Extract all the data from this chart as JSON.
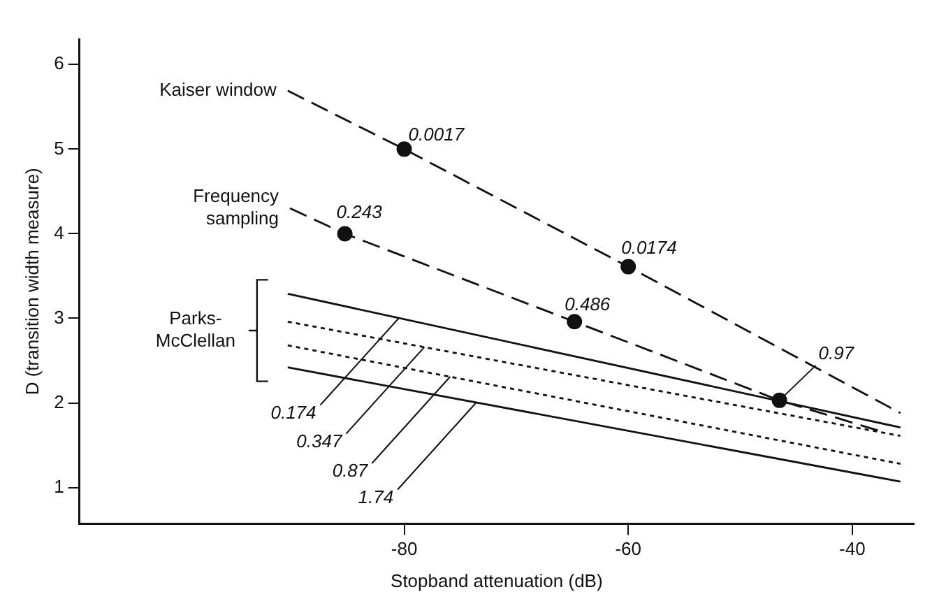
{
  "chart_data": {
    "type": "line",
    "xlabel": "Stopband attenuation (dB)",
    "ylabel": "D (transition width measure)",
    "xlim": [
      -109,
      -34.5
    ],
    "ylim": [
      0.57,
      6.3
    ],
    "xticks": [
      -80,
      -60,
      -40
    ],
    "yticks": [
      1,
      2,
      3,
      4,
      5,
      6
    ],
    "grid": false,
    "legend": false,
    "series": [
      {
        "name": "Kaiser window",
        "line_style": "dashed",
        "color": "#111111",
        "x": [
          -90.4,
          -80,
          -60,
          -35.7
        ],
        "values": [
          5.69,
          5,
          3.61,
          1.88
        ]
      },
      {
        "name": "Frequency\nsampling",
        "line_style": "dashed",
        "color": "#111111",
        "x": [
          -90.2,
          -85.3,
          -64.8,
          -46.5,
          -37.6
        ],
        "values": [
          4.3,
          4,
          2.96,
          2.03,
          1.67
        ]
      },
      {
        "line_style": "solid",
        "color": "#111111",
        "x": [
          -90.4,
          -35.7
        ],
        "values": [
          3.29,
          1.71
        ]
      },
      {
        "line_style": "dotted",
        "color": "#111111",
        "x": [
          -90.4,
          -35.7
        ],
        "values": [
          2.96,
          1.61
        ]
      },
      {
        "line_style": "dotted",
        "color": "#111111",
        "x": [
          -90.4,
          -35.7
        ],
        "values": [
          2.68,
          1.28
        ]
      },
      {
        "line_style": "solid",
        "color": "#111111",
        "x": [
          -90.4,
          -35.7
        ],
        "values": [
          2.42,
          1.07
        ]
      },
      {
        "type": "scatter",
        "marker": "circle",
        "color": "#111111",
        "x": [
          -80,
          -60,
          -85.3,
          -64.8,
          -46.5
        ],
        "values": [
          5,
          3.61,
          4,
          2.96,
          2.03
        ]
      }
    ],
    "annotations": [
      {
        "text": "0.0017",
        "x": -80,
        "y": 5
      },
      {
        "text": "0.0174",
        "x": -60,
        "y": 3.61
      },
      {
        "text": "0.243",
        "x": -85.3,
        "y": 4
      },
      {
        "text": "0.486",
        "x": -64.8,
        "y": 2.96
      },
      {
        "text": "0.97",
        "x": -46.5,
        "y": 2.03
      },
      {
        "text": "0.174",
        "x": -80.5,
        "y": 3.0
      },
      {
        "text": "0.347",
        "x": -78.2,
        "y": 2.66
      },
      {
        "text": "0.87",
        "x": -75.9,
        "y": 2.31
      },
      {
        "text": "1.74",
        "x": -73.6,
        "y": 2.0
      },
      "Parks-\nMcClellan"
    ]
  }
}
